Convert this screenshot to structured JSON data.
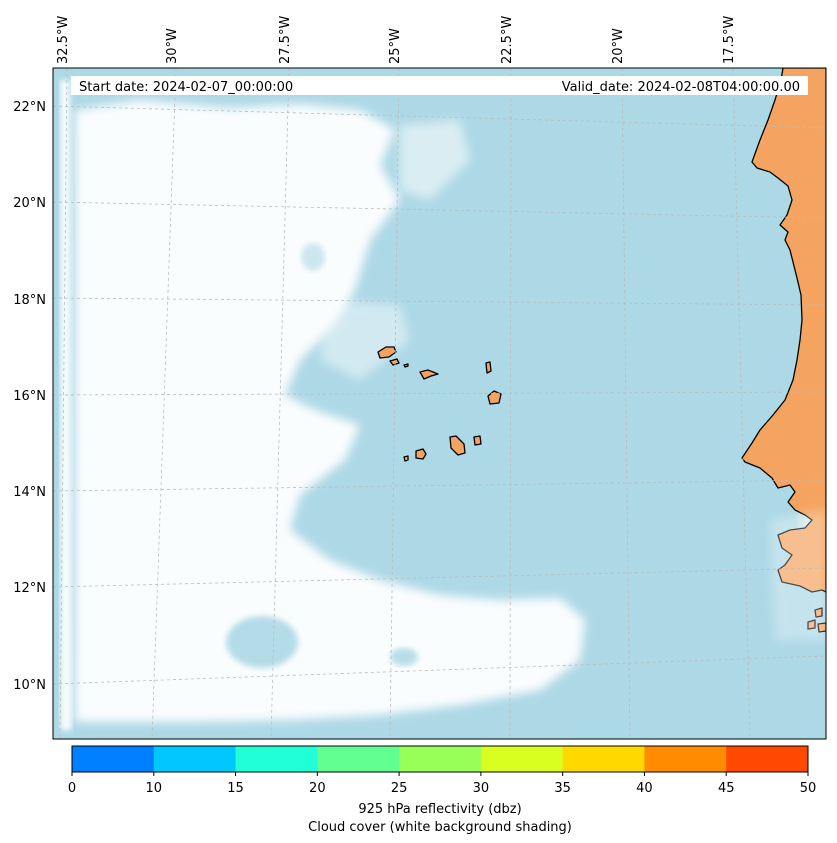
{
  "map": {
    "header": {
      "start_date": "Start date: 2024-02-07_00:00:00",
      "valid_date": "Valid_date: 2024-02-08T04:00:00.00"
    },
    "longitude_labels": [
      "32.5°W",
      "30°W",
      "27.5°W",
      "25°W",
      "22.5°W",
      "20°W",
      "17.5°W"
    ],
    "latitude_labels": [
      "22°N",
      "20°N",
      "18°N",
      "16°N",
      "14°N",
      "12°N",
      "10°N"
    ],
    "colors": {
      "ocean": "#add8e6",
      "land": "#f4a460",
      "coastline": "#000000",
      "cloud": "#ffffff",
      "gridline": "#bbbbbb"
    },
    "layers": [
      "ocean",
      "cloud-cover",
      "land",
      "coastline",
      "graticule"
    ],
    "cloud_cover_note": "white shading over western half"
  },
  "colorbar": {
    "ticks": [
      "0",
      "10",
      "15",
      "20",
      "25",
      "30",
      "35",
      "40",
      "45",
      "50"
    ],
    "colors": [
      "#0080ff",
      "#00c8ff",
      "#20ffd8",
      "#60ff90",
      "#98ff58",
      "#d8ff20",
      "#ffd800",
      "#ff8c00",
      "#ff4800"
    ],
    "label_line1": "925 hPa reflectivity (dbz)",
    "label_line2": "Cloud cover (white background shading)"
  }
}
